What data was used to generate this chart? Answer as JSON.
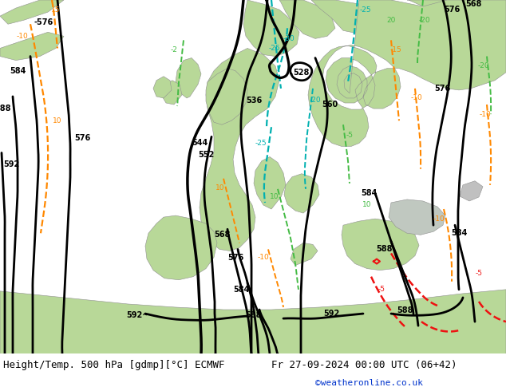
{
  "title_left": "Height/Temp. 500 hPa [gdmp][°C] ECMWF",
  "title_right": "Fr 27-09-2024 00:00 UTC (06+42)",
  "copyright": "©weatheronline.co.uk",
  "figsize": [
    6.34,
    4.9
  ],
  "dpi": 100,
  "sea_color": "#d0d0d0",
  "land_green": "#b8d898",
  "land_green2": "#c8e4a8",
  "white_area": "#e8e8e8",
  "font_size_title": 9.0,
  "font_size_copy": 8.0,
  "black": "#000000",
  "cyan": "#00b0b0",
  "orange": "#ff8800",
  "green_line": "#44bb44",
  "red_line": "#ee1111"
}
